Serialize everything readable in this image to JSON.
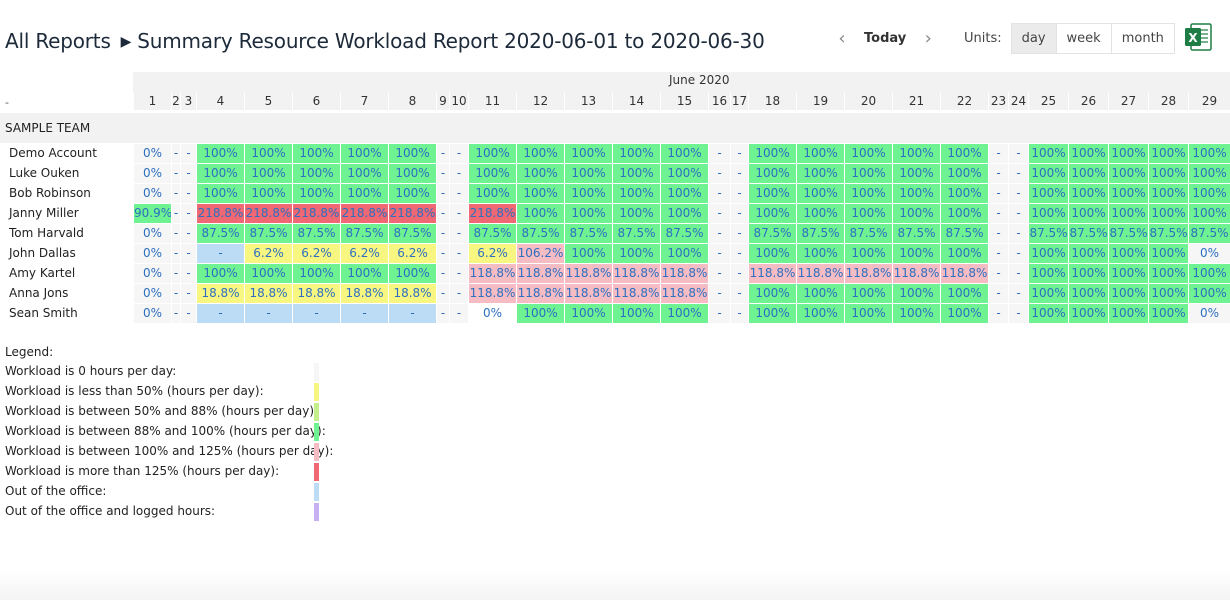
{
  "header": {
    "all_reports": "All Reports",
    "separator": "▶",
    "report_title": "Summary Resource Workload Report 2020-06-01 to 2020-06-30"
  },
  "nav": {
    "prev": "‹",
    "today": "Today",
    "next": "›"
  },
  "units": {
    "label": "Units:",
    "options": [
      "day",
      "week",
      "month"
    ],
    "selected": "day"
  },
  "export_icon": {
    "text": "X",
    "name": "excel-export-icon",
    "color": "#1e7d45"
  },
  "calendar": {
    "month": "June 2020",
    "dash": "-",
    "days": [
      "1",
      "2",
      "3",
      "4",
      "5",
      "6",
      "7",
      "8",
      "9",
      "10",
      "11",
      "12",
      "13",
      "14",
      "15",
      "16",
      "17",
      "18",
      "19",
      "20",
      "21",
      "22",
      "23",
      "24",
      "25",
      "26",
      "27",
      "28",
      "29"
    ]
  },
  "team": "SAMPLE TEAM",
  "rows": [
    {
      "name": "Demo Account",
      "cells": [
        [
          "0%",
          "g"
        ],
        [
          "-",
          "n"
        ],
        [
          "-",
          "n"
        ],
        [
          "100%",
          "G"
        ],
        [
          "100%",
          "G"
        ],
        [
          "100%",
          "G"
        ],
        [
          "100%",
          "G"
        ],
        [
          "100%",
          "G"
        ],
        [
          "-",
          "n"
        ],
        [
          "-",
          "n"
        ],
        [
          "100%",
          "G"
        ],
        [
          "100%",
          "G"
        ],
        [
          "100%",
          "G"
        ],
        [
          "100%",
          "G"
        ],
        [
          "100%",
          "G"
        ],
        [
          "-",
          "n"
        ],
        [
          "-",
          "n"
        ],
        [
          "100%",
          "G"
        ],
        [
          "100%",
          "G"
        ],
        [
          "100%",
          "G"
        ],
        [
          "100%",
          "G"
        ],
        [
          "100%",
          "G"
        ],
        [
          "-",
          "n"
        ],
        [
          "-",
          "n"
        ],
        [
          "100%",
          "G"
        ],
        [
          "100%",
          "G"
        ],
        [
          "100%",
          "G"
        ],
        [
          "100%",
          "G"
        ],
        [
          "100%",
          "G"
        ]
      ]
    },
    {
      "name": "Luke Ouken",
      "cells": [
        [
          "0%",
          "g"
        ],
        [
          "-",
          "n"
        ],
        [
          "-",
          "n"
        ],
        [
          "100%",
          "G"
        ],
        [
          "100%",
          "G"
        ],
        [
          "100%",
          "G"
        ],
        [
          "100%",
          "G"
        ],
        [
          "100%",
          "G"
        ],
        [
          "-",
          "n"
        ],
        [
          "-",
          "n"
        ],
        [
          "100%",
          "G"
        ],
        [
          "100%",
          "G"
        ],
        [
          "100%",
          "G"
        ],
        [
          "100%",
          "G"
        ],
        [
          "100%",
          "G"
        ],
        [
          "-",
          "n"
        ],
        [
          "-",
          "n"
        ],
        [
          "100%",
          "G"
        ],
        [
          "100%",
          "G"
        ],
        [
          "100%",
          "G"
        ],
        [
          "100%",
          "G"
        ],
        [
          "100%",
          "G"
        ],
        [
          "-",
          "n"
        ],
        [
          "-",
          "n"
        ],
        [
          "100%",
          "G"
        ],
        [
          "100%",
          "G"
        ],
        [
          "100%",
          "G"
        ],
        [
          "100%",
          "G"
        ],
        [
          "100%",
          "G"
        ]
      ]
    },
    {
      "name": "Bob Robinson",
      "cells": [
        [
          "0%",
          "g"
        ],
        [
          "-",
          "n"
        ],
        [
          "-",
          "n"
        ],
        [
          "100%",
          "G"
        ],
        [
          "100%",
          "G"
        ],
        [
          "100%",
          "G"
        ],
        [
          "100%",
          "G"
        ],
        [
          "100%",
          "G"
        ],
        [
          "-",
          "n"
        ],
        [
          "-",
          "n"
        ],
        [
          "100%",
          "G"
        ],
        [
          "100%",
          "G"
        ],
        [
          "100%",
          "G"
        ],
        [
          "100%",
          "G"
        ],
        [
          "100%",
          "G"
        ],
        [
          "-",
          "n"
        ],
        [
          "-",
          "n"
        ],
        [
          "100%",
          "G"
        ],
        [
          "100%",
          "G"
        ],
        [
          "100%",
          "G"
        ],
        [
          "100%",
          "G"
        ],
        [
          "100%",
          "G"
        ],
        [
          "-",
          "n"
        ],
        [
          "-",
          "n"
        ],
        [
          "100%",
          "G"
        ],
        [
          "100%",
          "G"
        ],
        [
          "100%",
          "G"
        ],
        [
          "100%",
          "G"
        ],
        [
          "100%",
          "G"
        ]
      ]
    },
    {
      "name": "Janny Miller",
      "cells": [
        [
          "90.9%",
          "G"
        ],
        [
          "-",
          "n"
        ],
        [
          "-",
          "n"
        ],
        [
          "218.8%",
          "R"
        ],
        [
          "218.8%",
          "R"
        ],
        [
          "218.8%",
          "R"
        ],
        [
          "218.8%",
          "R"
        ],
        [
          "218.8%",
          "R"
        ],
        [
          "-",
          "n"
        ],
        [
          "-",
          "n"
        ],
        [
          "218.8%",
          "R"
        ],
        [
          "100%",
          "G"
        ],
        [
          "100%",
          "G"
        ],
        [
          "100%",
          "G"
        ],
        [
          "100%",
          "G"
        ],
        [
          "-",
          "n"
        ],
        [
          "-",
          "n"
        ],
        [
          "100%",
          "G"
        ],
        [
          "100%",
          "G"
        ],
        [
          "100%",
          "G"
        ],
        [
          "100%",
          "G"
        ],
        [
          "100%",
          "G"
        ],
        [
          "-",
          "n"
        ],
        [
          "-",
          "n"
        ],
        [
          "100%",
          "G"
        ],
        [
          "100%",
          "G"
        ],
        [
          "100%",
          "G"
        ],
        [
          "100%",
          "G"
        ],
        [
          "100%",
          "G"
        ]
      ]
    },
    {
      "name": "Tom Harvald",
      "cells": [
        [
          "0%",
          "g"
        ],
        [
          "-",
          "n"
        ],
        [
          "-",
          "n"
        ],
        [
          "87.5%",
          "G"
        ],
        [
          "87.5%",
          "G"
        ],
        [
          "87.5%",
          "G"
        ],
        [
          "87.5%",
          "G"
        ],
        [
          "87.5%",
          "G"
        ],
        [
          "-",
          "n"
        ],
        [
          "-",
          "n"
        ],
        [
          "87.5%",
          "G"
        ],
        [
          "87.5%",
          "G"
        ],
        [
          "87.5%",
          "G"
        ],
        [
          "87.5%",
          "G"
        ],
        [
          "87.5%",
          "G"
        ],
        [
          "-",
          "n"
        ],
        [
          "-",
          "n"
        ],
        [
          "87.5%",
          "G"
        ],
        [
          "87.5%",
          "G"
        ],
        [
          "87.5%",
          "G"
        ],
        [
          "87.5%",
          "G"
        ],
        [
          "87.5%",
          "G"
        ],
        [
          "-",
          "n"
        ],
        [
          "-",
          "n"
        ],
        [
          "87.5%",
          "G"
        ],
        [
          "87.5%",
          "G"
        ],
        [
          "87.5%",
          "G"
        ],
        [
          "87.5%",
          "G"
        ],
        [
          "87.5%",
          "G"
        ]
      ]
    },
    {
      "name": "John Dallas",
      "cells": [
        [
          "0%",
          "g"
        ],
        [
          "-",
          "n"
        ],
        [
          "-",
          "n"
        ],
        [
          "-",
          "B"
        ],
        [
          "6.2%",
          "Y"
        ],
        [
          "6.2%",
          "Y"
        ],
        [
          "6.2%",
          "Y"
        ],
        [
          "6.2%",
          "Y"
        ],
        [
          "-",
          "n"
        ],
        [
          "-",
          "n"
        ],
        [
          "6.2%",
          "Y"
        ],
        [
          "106.2%",
          "P"
        ],
        [
          "100%",
          "G"
        ],
        [
          "100%",
          "G"
        ],
        [
          "100%",
          "G"
        ],
        [
          "-",
          "n"
        ],
        [
          "-",
          "n"
        ],
        [
          "100%",
          "G"
        ],
        [
          "100%",
          "G"
        ],
        [
          "100%",
          "G"
        ],
        [
          "100%",
          "G"
        ],
        [
          "100%",
          "G"
        ],
        [
          "-",
          "n"
        ],
        [
          "-",
          "n"
        ],
        [
          "100%",
          "G"
        ],
        [
          "100%",
          "G"
        ],
        [
          "100%",
          "G"
        ],
        [
          "100%",
          "G"
        ],
        [
          "0%",
          "g"
        ]
      ]
    },
    {
      "name": "Amy Kartel",
      "cells": [
        [
          "0%",
          "g"
        ],
        [
          "-",
          "n"
        ],
        [
          "-",
          "n"
        ],
        [
          "100%",
          "G"
        ],
        [
          "100%",
          "G"
        ],
        [
          "100%",
          "G"
        ],
        [
          "100%",
          "G"
        ],
        [
          "100%",
          "G"
        ],
        [
          "-",
          "n"
        ],
        [
          "-",
          "n"
        ],
        [
          "118.8%",
          "P"
        ],
        [
          "118.8%",
          "P"
        ],
        [
          "118.8%",
          "P"
        ],
        [
          "118.8%",
          "P"
        ],
        [
          "118.8%",
          "P"
        ],
        [
          "-",
          "n"
        ],
        [
          "-",
          "n"
        ],
        [
          "118.8%",
          "P"
        ],
        [
          "118.8%",
          "P"
        ],
        [
          "118.8%",
          "P"
        ],
        [
          "118.8%",
          "P"
        ],
        [
          "118.8%",
          "P"
        ],
        [
          "-",
          "n"
        ],
        [
          "-",
          "n"
        ],
        [
          "100%",
          "G"
        ],
        [
          "100%",
          "G"
        ],
        [
          "100%",
          "G"
        ],
        [
          "100%",
          "G"
        ],
        [
          "100%",
          "G"
        ]
      ]
    },
    {
      "name": "Anna Jons",
      "cells": [
        [
          "0%",
          "g"
        ],
        [
          "-",
          "n"
        ],
        [
          "-",
          "n"
        ],
        [
          "18.8%",
          "Y"
        ],
        [
          "18.8%",
          "Y"
        ],
        [
          "18.8%",
          "Y"
        ],
        [
          "18.8%",
          "Y"
        ],
        [
          "18.8%",
          "Y"
        ],
        [
          "-",
          "n"
        ],
        [
          "-",
          "n"
        ],
        [
          "118.8%",
          "P"
        ],
        [
          "118.8%",
          "P"
        ],
        [
          "118.8%",
          "P"
        ],
        [
          "118.8%",
          "P"
        ],
        [
          "118.8%",
          "P"
        ],
        [
          "-",
          "n"
        ],
        [
          "-",
          "n"
        ],
        [
          "100%",
          "G"
        ],
        [
          "100%",
          "G"
        ],
        [
          "100%",
          "G"
        ],
        [
          "100%",
          "G"
        ],
        [
          "100%",
          "G"
        ],
        [
          "-",
          "n"
        ],
        [
          "-",
          "n"
        ],
        [
          "100%",
          "G"
        ],
        [
          "100%",
          "G"
        ],
        [
          "100%",
          "G"
        ],
        [
          "100%",
          "G"
        ],
        [
          "100%",
          "G"
        ]
      ]
    },
    {
      "name": "Sean Smith",
      "cells": [
        [
          "0%",
          "g"
        ],
        [
          "-",
          "n"
        ],
        [
          "-",
          "n"
        ],
        [
          "-",
          "B"
        ],
        [
          "-",
          "B"
        ],
        [
          "-",
          "B"
        ],
        [
          "-",
          "B"
        ],
        [
          "-",
          "B"
        ],
        [
          "-",
          "n"
        ],
        [
          "-",
          "n"
        ],
        [
          "0%",
          "w"
        ],
        [
          "100%",
          "G"
        ],
        [
          "100%",
          "G"
        ],
        [
          "100%",
          "G"
        ],
        [
          "100%",
          "G"
        ],
        [
          "-",
          "n"
        ],
        [
          "-",
          "n"
        ],
        [
          "100%",
          "G"
        ],
        [
          "100%",
          "G"
        ],
        [
          "100%",
          "G"
        ],
        [
          "100%",
          "G"
        ],
        [
          "100%",
          "G"
        ],
        [
          "-",
          "n"
        ],
        [
          "-",
          "n"
        ],
        [
          "100%",
          "G"
        ],
        [
          "100%",
          "G"
        ],
        [
          "100%",
          "G"
        ],
        [
          "100%",
          "G"
        ],
        [
          "0%",
          "g"
        ]
      ]
    }
  ],
  "legend": {
    "title": "Legend:",
    "items": [
      {
        "label": "Workload is 0 hours per day:",
        "color": "#f6f6f6"
      },
      {
        "label": "Workload is less than 50% (hours per day):",
        "color": "#f6f681"
      },
      {
        "label": "Workload is between 50% and 88% (hours per day):",
        "color": "#c3f08a"
      },
      {
        "label": "Workload is between 88% and 100% (hours per day):",
        "color": "#6ef292"
      },
      {
        "label": "Workload is between 100% and 125% (hours per day):",
        "color": "#f5bcc4"
      },
      {
        "label": "Workload is more than 125% (hours per day):",
        "color": "#ef6873"
      },
      {
        "label": "Out of the office:",
        "color": "#bcdcf6"
      },
      {
        "label": "Out of the office and logged hours:",
        "color": "#c8b1f2"
      }
    ]
  }
}
